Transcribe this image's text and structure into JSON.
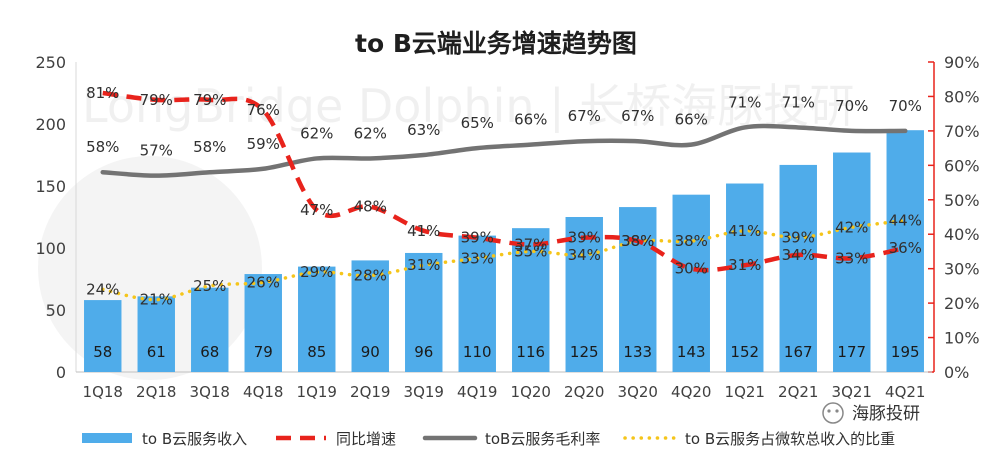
{
  "chart_data": {
    "type": "bar",
    "title": "to B云端业务增速趋势图",
    "categories": [
      "1Q18",
      "2Q18",
      "3Q18",
      "4Q18",
      "1Q19",
      "2Q19",
      "3Q19",
      "4Q19",
      "1Q20",
      "2Q20",
      "3Q20",
      "4Q20",
      "1Q21",
      "2Q21",
      "3Q21",
      "4Q21"
    ],
    "left_axis": {
      "ylim": [
        0,
        250
      ],
      "ticks": [
        "0",
        "50",
        "100",
        "150",
        "200",
        "250"
      ]
    },
    "right_axis": {
      "ylim": [
        0,
        90
      ],
      "ticks": [
        "0%",
        "10%",
        "20%",
        "30%",
        "40%",
        "50%",
        "60%",
        "70%",
        "80%",
        "90%"
      ]
    },
    "series": [
      {
        "name": "to B云服务收入",
        "type": "bar",
        "axis": "left",
        "color": "#4facea",
        "values": [
          58,
          61,
          68,
          79,
          85,
          90,
          96,
          110,
          116,
          125,
          133,
          143,
          152,
          167,
          177,
          195
        ],
        "labels": [
          "58",
          "61",
          "68",
          "79",
          "85",
          "90",
          "96",
          "110",
          "116",
          "125",
          "133",
          "143",
          "152",
          "167",
          "177",
          "195"
        ]
      },
      {
        "name": "同比增速",
        "type": "line",
        "style": "dashed",
        "axis": "right",
        "color": "#e8231c",
        "values": [
          81,
          79,
          79,
          76,
          47,
          48,
          41,
          39,
          37,
          39,
          38,
          30,
          31,
          34,
          33,
          36
        ],
        "labels": [
          "81%",
          "79%",
          "79%",
          "76%",
          "47%",
          "48%",
          "41%",
          "39%",
          "37%",
          "39%",
          "38%",
          "30%",
          "31%",
          "34%",
          "33%",
          "36%"
        ]
      },
      {
        "name": "toB云服务毛利率",
        "type": "line",
        "style": "solid",
        "axis": "right",
        "color": "#737373",
        "values": [
          58,
          57,
          58,
          59,
          62,
          62,
          63,
          65,
          66,
          67,
          67,
          66,
          71,
          71,
          70,
          70
        ],
        "labels": [
          "58%",
          "57%",
          "58%",
          "59%",
          "62%",
          "62%",
          "63%",
          "65%",
          "66%",
          "67%",
          "67%",
          "66%",
          "71%",
          "71%",
          "70%",
          "70%"
        ]
      },
      {
        "name": "to B云服务占微软总收入的比重",
        "type": "line",
        "style": "dotted",
        "axis": "right",
        "color": "#f5c51b",
        "values": [
          24,
          21,
          25,
          26,
          29,
          28,
          31,
          33,
          35,
          34,
          38,
          38,
          41,
          39,
          42,
          44
        ],
        "labels": [
          "24%",
          "21%",
          "25%",
          "26%",
          "29%",
          "28%",
          "31%",
          "33%",
          "35%",
          "34%",
          "38%",
          "38%",
          "41%",
          "39%",
          "42%",
          "44%"
        ]
      }
    ],
    "watermark": "LongBridge Dolphin | 长桥海豚投研",
    "badge": "海豚投研"
  }
}
